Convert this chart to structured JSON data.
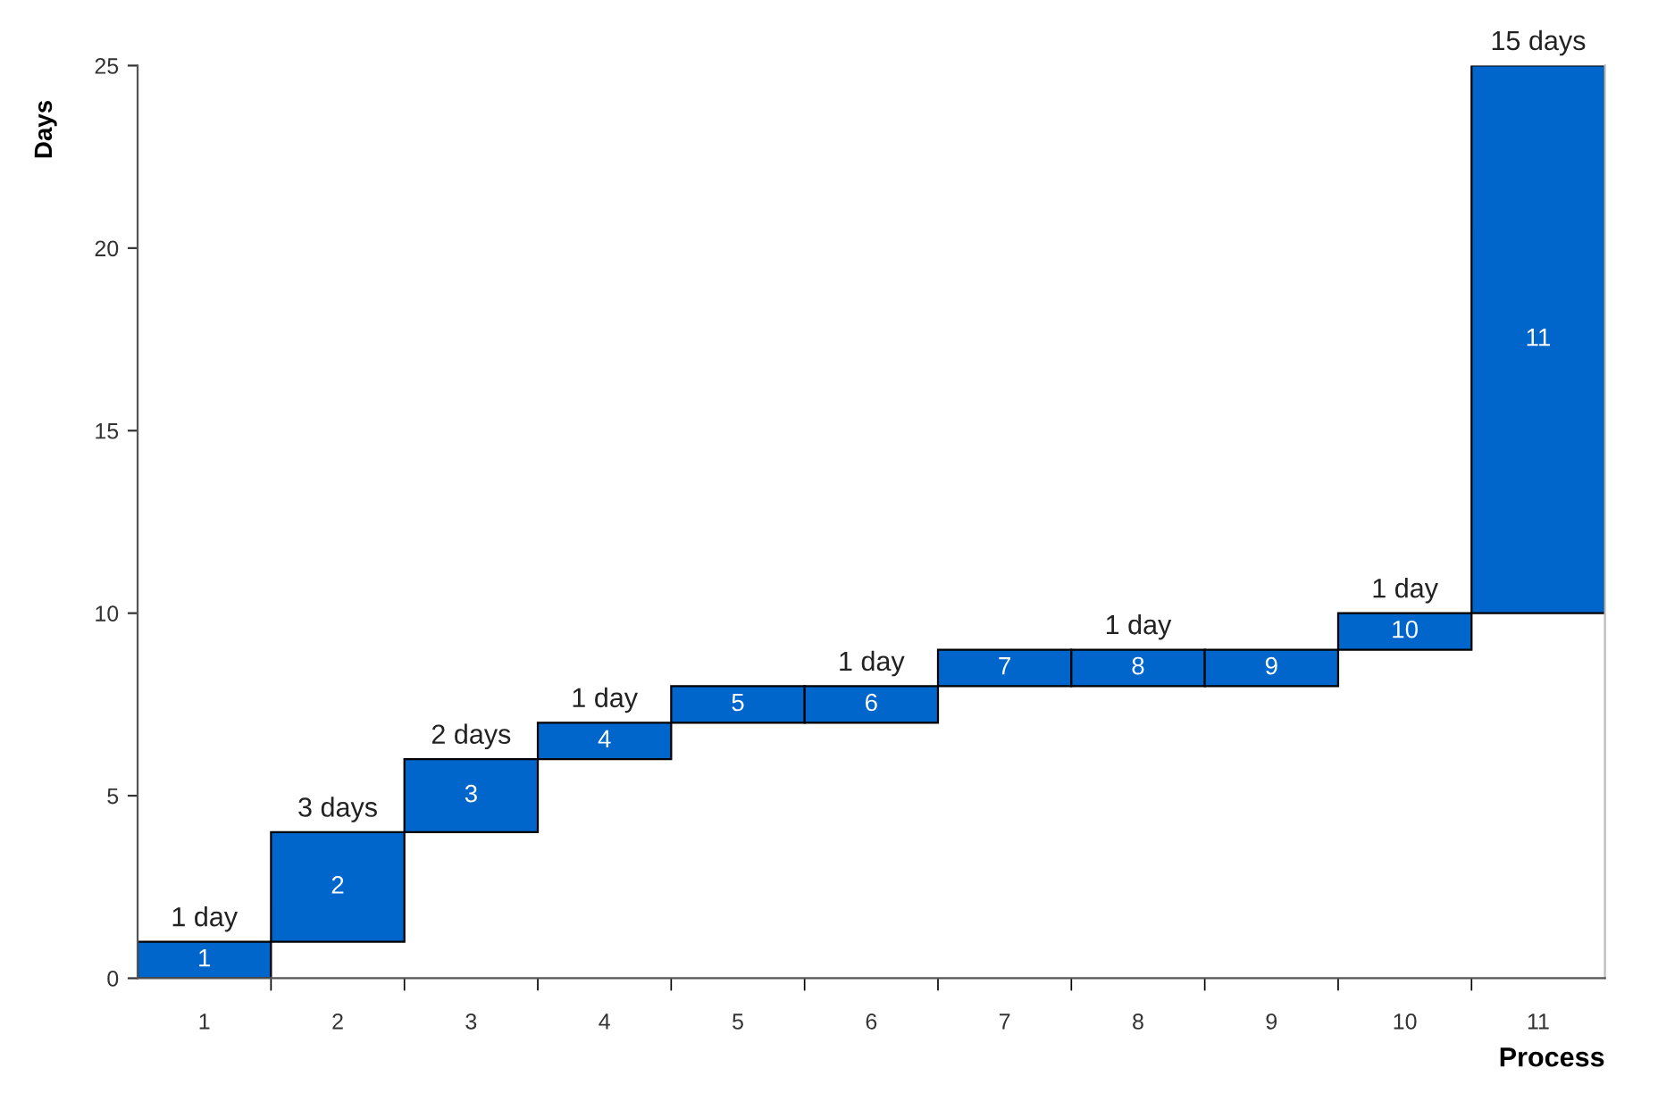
{
  "chart_data": {
    "type": "bar",
    "xlabel": "Process",
    "ylabel": "Days",
    "categories": [
      "1",
      "2",
      "3",
      "4",
      "5",
      "6",
      "7",
      "8",
      "9",
      "10",
      "11"
    ],
    "base": [
      0,
      1,
      4,
      6,
      7,
      7,
      8,
      8,
      8,
      9,
      10
    ],
    "values": [
      1,
      3,
      2,
      1,
      1,
      1,
      1,
      1,
      1,
      1,
      15
    ],
    "color": "#0066cc",
    "ylim": [
      0,
      25
    ],
    "yticks": [
      0,
      5,
      10,
      15,
      20,
      25
    ],
    "grid": false,
    "annotations": [
      {
        "text": "1 day",
        "x": "1",
        "y": 1
      },
      {
        "text": "3 days",
        "x": "2",
        "y": 4
      },
      {
        "text": "2 days",
        "x": "3",
        "y": 6
      },
      {
        "text": "1 day",
        "x": "4",
        "y": 7
      },
      {
        "text": "1 day",
        "x": "6",
        "y": 8
      },
      {
        "text": "1 day",
        "x": "8",
        "y": 9
      },
      {
        "text": "1 day",
        "x": "10",
        "y": 10
      },
      {
        "text": "15 days",
        "x": "11",
        "y": 25
      },
      "1",
      "2",
      "3",
      "4",
      "5",
      "6",
      "7",
      "8",
      "9",
      "10",
      "11"
    ]
  }
}
